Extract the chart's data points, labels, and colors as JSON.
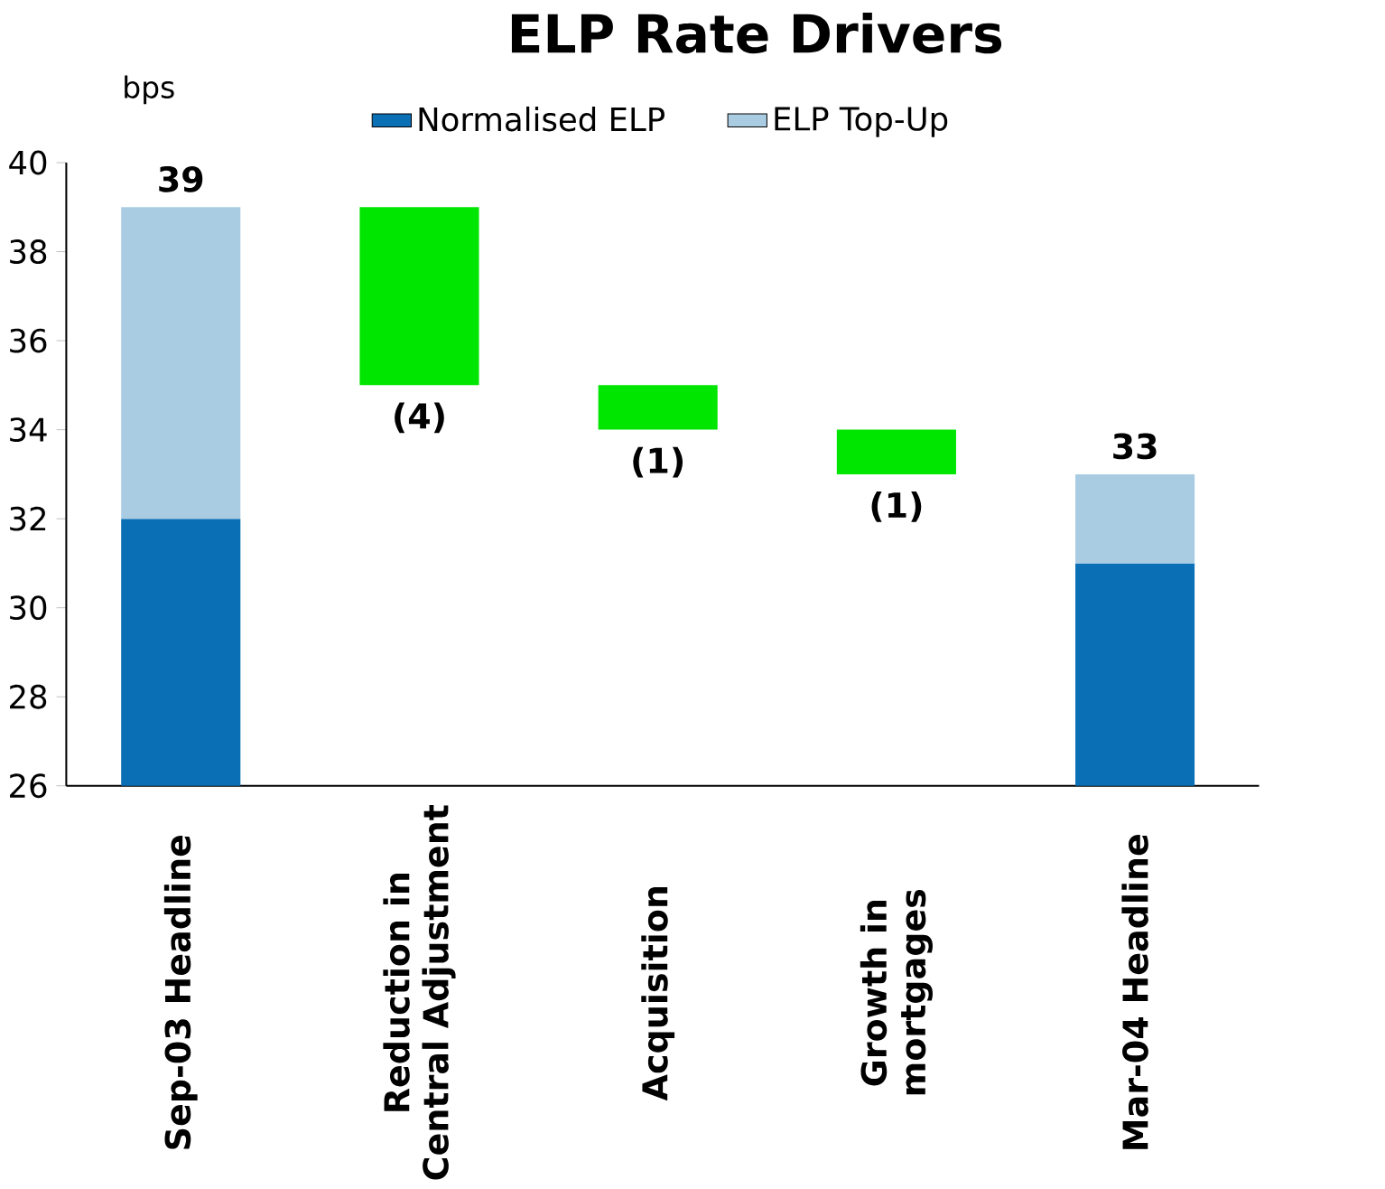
{
  "chart_data": {
    "type": "bar",
    "title": "ELP Rate Drivers",
    "ylabel": "bps",
    "categories": [
      "Sep-03 Headline",
      "Reduction in Central Adjustment",
      "Acquisition",
      "Growth in mortgages",
      "Mar-04 Headline"
    ],
    "series": [
      {
        "name": "Normalised ELP",
        "color": "#0a6fb5",
        "values": [
          32,
          null,
          null,
          null,
          31
        ]
      },
      {
        "name": "ELP Top-Up",
        "color": "#a9cce3",
        "values": [
          7,
          null,
          null,
          null,
          2
        ],
        "base": [
          32,
          null,
          null,
          null,
          31
        ]
      },
      {
        "color": "#00e600",
        "values": [
          null,
          -4,
          -1,
          -1,
          null
        ],
        "base": [
          null,
          39,
          35,
          34,
          null
        ],
        "value_labels": [
          null,
          "(4)",
          "(1)",
          "(1)",
          null
        ]
      }
    ],
    "totals": [
      "39",
      null,
      null,
      null,
      "33"
    ],
    "ylim": [
      26,
      40
    ],
    "yticks": [
      26,
      28,
      30,
      32,
      34,
      36,
      38,
      40
    ],
    "legend": "top",
    "grid": false
  }
}
